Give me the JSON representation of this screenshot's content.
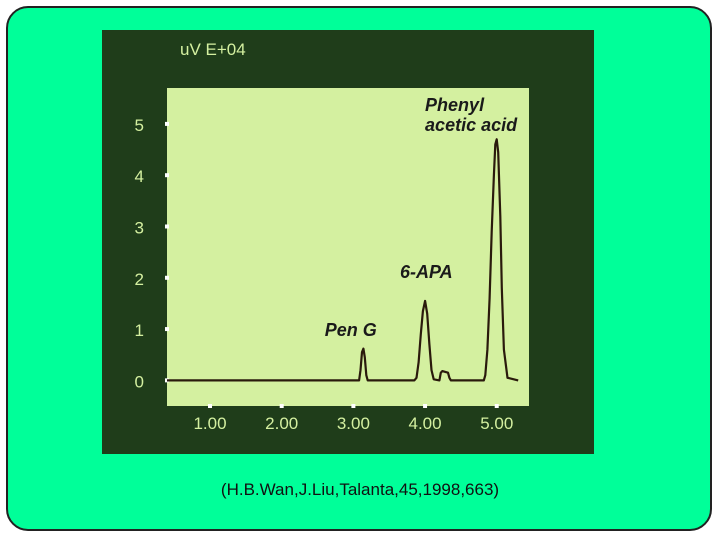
{
  "slide": {
    "background_color": "#00ff99",
    "caption": "(H.B.Wan,J.Liu,Talanta,45,1998,663)"
  },
  "chart_data": {
    "type": "line",
    "title": "",
    "ylabel": "uV E+04",
    "xlabel": "",
    "x_ticks": [
      "1.00",
      "2.00",
      "3.00",
      "4.00",
      "5.00"
    ],
    "x_tick_values": [
      1,
      2,
      3,
      4,
      5
    ],
    "y_ticks": [
      "0",
      "1",
      "2",
      "3",
      "4",
      "5"
    ],
    "y_tick_values": [
      0,
      1,
      2,
      3,
      4,
      5
    ],
    "xlim": [
      0.4,
      5.45
    ],
    "ylim": [
      -0.5,
      5.7
    ],
    "grid": false,
    "colors": {
      "outer": "#1f3d1a",
      "plot": "#d4f0a0",
      "axis": "#ffffff",
      "trace": "#2a1a0c",
      "label": "#1a1a1a"
    },
    "series": [
      {
        "x": [
          0.4,
          2.9,
          3.08,
          3.1,
          3.12,
          3.14,
          3.16,
          3.18,
          3.2,
          3.25,
          3.85,
          3.88,
          3.91,
          3.94,
          3.97,
          4.0,
          4.03,
          4.06,
          4.09,
          4.12,
          4.2,
          4.22,
          4.24,
          4.32,
          4.34,
          4.36,
          4.82,
          4.84,
          4.87,
          4.9,
          4.93,
          4.96,
          4.98,
          5.0,
          5.02,
          5.05,
          5.07,
          5.1,
          5.15,
          5.3
        ],
        "y": [
          0.0,
          0.0,
          0.0,
          0.2,
          0.55,
          0.62,
          0.45,
          0.1,
          0.0,
          0.0,
          0.0,
          0.05,
          0.35,
          0.9,
          1.35,
          1.55,
          1.3,
          0.7,
          0.2,
          0.02,
          0.0,
          0.15,
          0.18,
          0.15,
          0.05,
          0.0,
          0.0,
          0.1,
          0.6,
          1.6,
          2.9,
          4.0,
          4.6,
          4.7,
          4.45,
          3.2,
          1.8,
          0.6,
          0.05,
          0.0
        ]
      }
    ],
    "annotations": [
      {
        "text": "Phenyl",
        "x": 4.0,
        "y": 5.25
      },
      {
        "text": "acetic acid",
        "x": 4.0,
        "y": 4.86
      },
      {
        "text": "6-APA",
        "x": 3.65,
        "y": 2.0
      },
      {
        "text": "Pen G",
        "x": 2.6,
        "y": 0.86
      }
    ]
  }
}
